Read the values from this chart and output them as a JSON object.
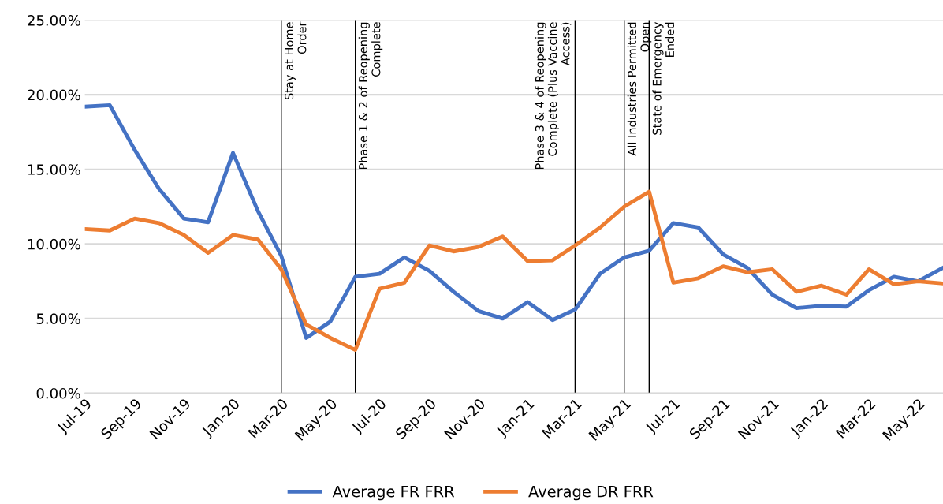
{
  "chart_data": {
    "type": "line",
    "x": [
      "2019-07",
      "2019-08",
      "2019-09",
      "2019-10",
      "2019-11",
      "2019-12",
      "2020-01",
      "2020-02",
      "2020-03",
      "2020-04",
      "2020-05",
      "2020-06",
      "2020-07",
      "2020-08",
      "2020-09",
      "2020-10",
      "2020-11",
      "2020-12",
      "2021-01",
      "2021-02",
      "2021-03",
      "2021-04",
      "2021-05",
      "2021-06",
      "2021-07",
      "2021-08",
      "2021-09",
      "2021-10",
      "2021-11",
      "2021-12",
      "2022-01",
      "2022-02",
      "2022-03",
      "2022-04",
      "2022-05",
      "2022-06"
    ],
    "series": [
      {
        "name": "Average FR FRR",
        "color": "#4472c4",
        "values": [
          19.2,
          19.3,
          16.3,
          13.7,
          11.7,
          11.45,
          16.1,
          12.2,
          9.2,
          3.7,
          4.8,
          7.8,
          8.0,
          9.1,
          8.2,
          6.8,
          5.5,
          5.0,
          6.1,
          4.9,
          5.6,
          8.0,
          9.1,
          9.55,
          11.4,
          11.1,
          9.3,
          8.4,
          6.6,
          5.7,
          5.85,
          5.8,
          6.9,
          7.8,
          7.5,
          8.4
        ]
      },
      {
        "name": "Average DR FRR",
        "color": "#ed7d31",
        "values": [
          11.0,
          10.9,
          11.7,
          11.4,
          10.6,
          9.4,
          10.6,
          10.3,
          8.3,
          4.6,
          3.7,
          2.9,
          7.0,
          7.4,
          9.9,
          9.5,
          9.8,
          10.5,
          8.85,
          8.9,
          9.9,
          11.1,
          12.5,
          13.5,
          7.4,
          7.7,
          8.5,
          8.1,
          8.3,
          6.8,
          7.2,
          6.6,
          8.3,
          7.3,
          7.5,
          7.35
        ]
      }
    ],
    "xlim": [
      "2019-07",
      "2022-06"
    ],
    "xticks": [
      {
        "value": "2019-07",
        "label": "Jul-19"
      },
      {
        "value": "2019-09",
        "label": "Sep-19"
      },
      {
        "value": "2019-11",
        "label": "Nov-19"
      },
      {
        "value": "2020-01",
        "label": "Jan-20"
      },
      {
        "value": "2020-03",
        "label": "Mar-20"
      },
      {
        "value": "2020-05",
        "label": "May-20"
      },
      {
        "value": "2020-07",
        "label": "Jul-20"
      },
      {
        "value": "2020-09",
        "label": "Sep-20"
      },
      {
        "value": "2020-11",
        "label": "Nov-20"
      },
      {
        "value": "2021-01",
        "label": "Jan-21"
      },
      {
        "value": "2021-03",
        "label": "Mar-21"
      },
      {
        "value": "2021-05",
        "label": "May-21"
      },
      {
        "value": "2021-07",
        "label": "Jul-21"
      },
      {
        "value": "2021-09",
        "label": "Sep-21"
      },
      {
        "value": "2021-11",
        "label": "Nov-21"
      },
      {
        "value": "2022-01",
        "label": "Jan-22"
      },
      {
        "value": "2022-03",
        "label": "Mar-22"
      },
      {
        "value": "2022-05",
        "label": "May-22"
      }
    ],
    "ylim": [
      0,
      25
    ],
    "yticks": [
      {
        "value": 0,
        "label": "0.00%"
      },
      {
        "value": 5,
        "label": "5.00%"
      },
      {
        "value": 10,
        "label": "10.00%"
      },
      {
        "value": 15,
        "label": "15.00%"
      },
      {
        "value": 20,
        "label": "20.00%"
      },
      {
        "value": 25,
        "label": "25.00%"
      }
    ],
    "ref_lines": [
      {
        "axis": "x",
        "value": "2020-03",
        "label": "Stay at Home\nOrder",
        "color": "#000000"
      },
      {
        "axis": "x",
        "value": "2020-06",
        "label": "Phase 1 & 2 of Reopening\nComplete",
        "color": "#000000"
      },
      {
        "axis": "x",
        "value": "2021-03",
        "label": "Phase 3 & 4 of Reopening\nComplete (Plus Vaccine\nAccess)",
        "color": "#000000"
      },
      {
        "axis": "x",
        "value": "2021-05",
        "label": "All Industries Permitted\nOpen",
        "color": "#000000"
      },
      {
        "axis": "x",
        "value": "2021-06",
        "label": "State of Emergency\nEnded",
        "color": "#000000"
      }
    ],
    "grid": "y",
    "legend": "bottom",
    "marker": "none",
    "line_style": "solid"
  }
}
